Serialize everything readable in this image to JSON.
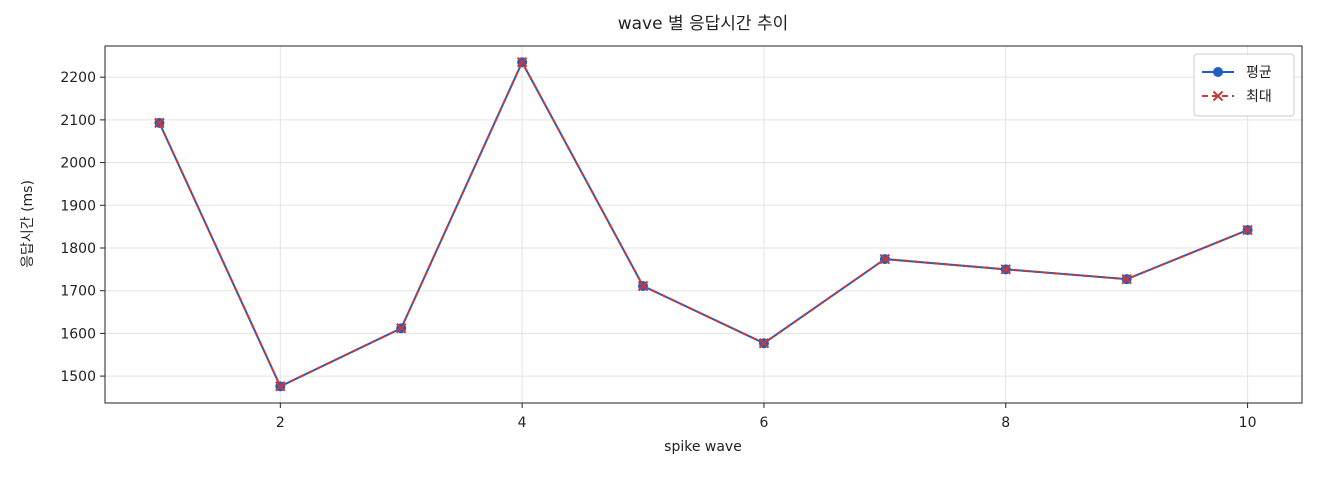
{
  "chart_data": {
    "type": "line",
    "title": "wave 별 응답시간 추이",
    "xlabel": "spike wave",
    "ylabel": "응답시간 (ms)",
    "x": [
      1,
      2,
      3,
      4,
      5,
      6,
      7,
      8,
      9,
      10
    ],
    "series": [
      {
        "name": "평균",
        "color": "#1f5fbf",
        "marker": "o",
        "linestyle": "solid",
        "values": [
          2093,
          1476,
          1612,
          2235,
          1711,
          1577,
          1774,
          1750,
          1727,
          1842
        ]
      },
      {
        "name": "최대",
        "color": "#c8393b",
        "marker": "x",
        "linestyle": "dashed",
        "values": [
          2093,
          1476,
          1612,
          2235,
          1711,
          1577,
          1774,
          1750,
          1727,
          1842
        ]
      }
    ],
    "xlim": [
      0.55,
      10.45
    ],
    "xticks": [
      2,
      4,
      6,
      8,
      10
    ],
    "ylim": [
      1437,
      2273
    ],
    "yticks": [
      1500,
      1600,
      1700,
      1800,
      1900,
      2000,
      2100,
      2200
    ],
    "grid": true,
    "legend": "upper right"
  }
}
